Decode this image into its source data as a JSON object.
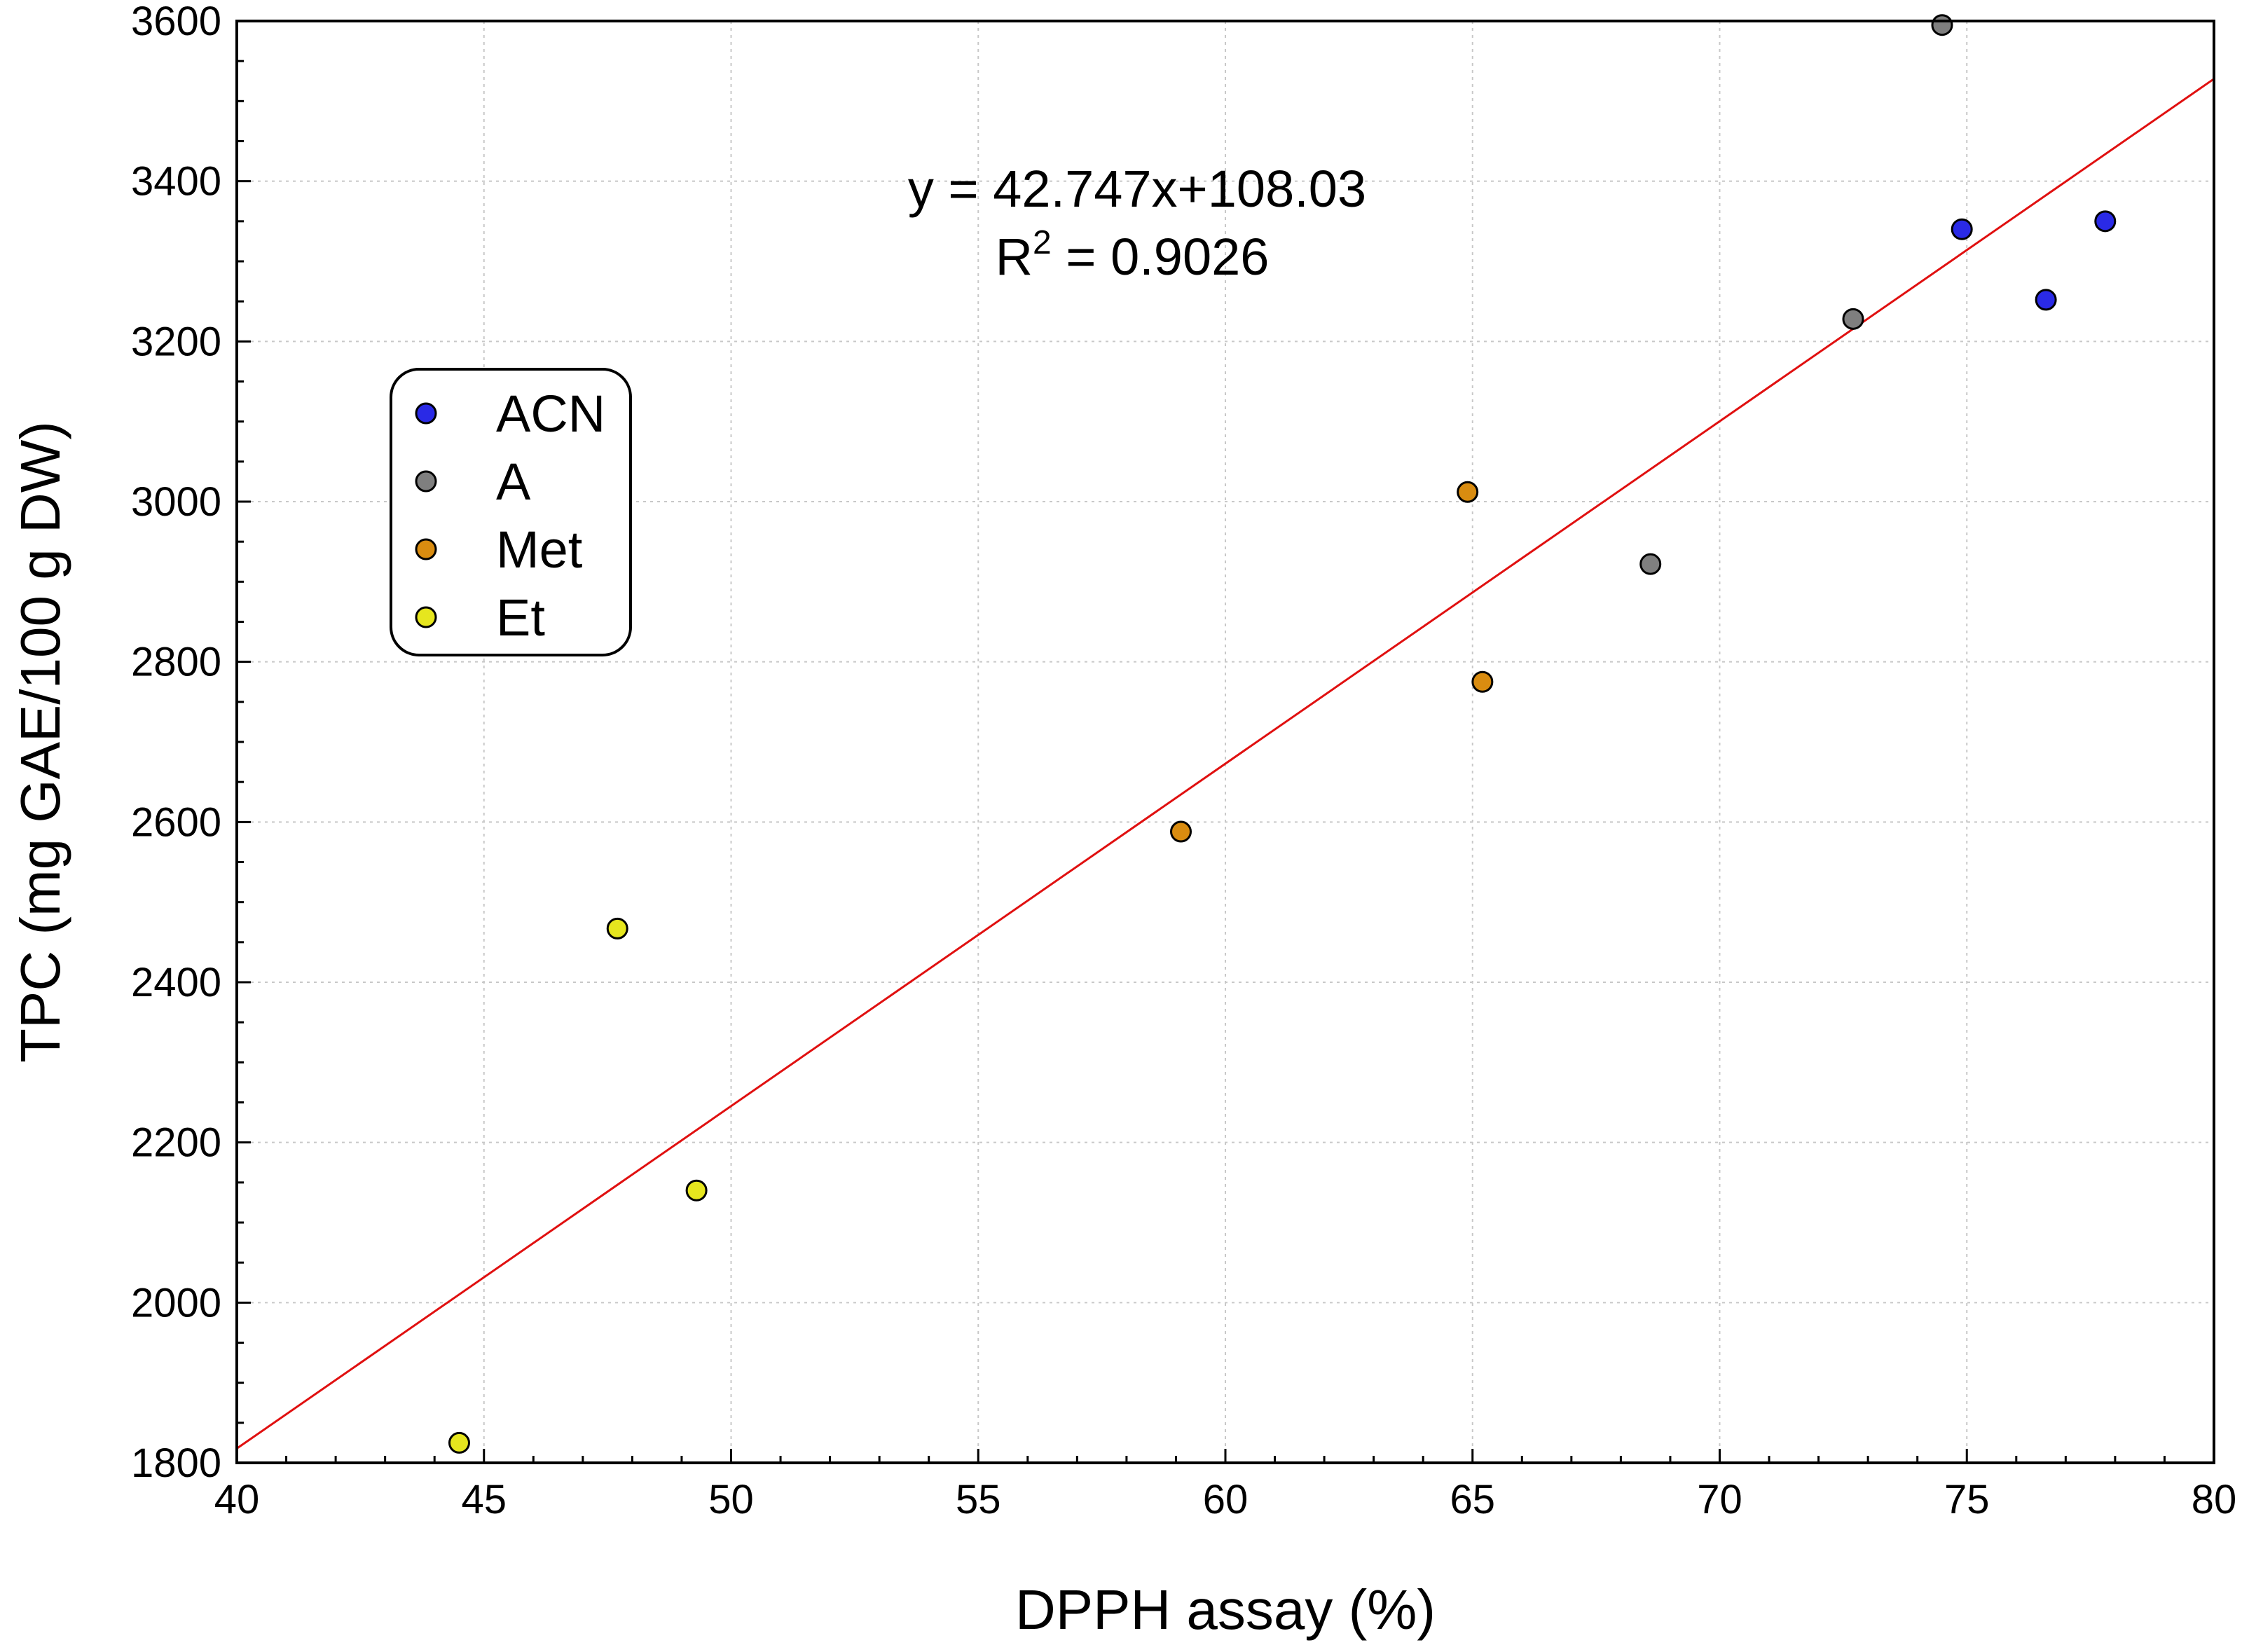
{
  "chart_data": {
    "type": "scatter",
    "title": "",
    "xlabel": "DPPH assay (%)",
    "ylabel": "TPC (mg GAE/100 g DW)",
    "xlim": [
      40,
      80
    ],
    "ylim": [
      1800,
      3600
    ],
    "x_ticks": [
      40,
      45,
      50,
      55,
      60,
      65,
      70,
      75,
      80
    ],
    "y_ticks": [
      1800,
      2000,
      2200,
      2400,
      2600,
      2800,
      3000,
      3200,
      3400,
      3600
    ],
    "grid": true,
    "legend_position": "left",
    "series": [
      {
        "name": "ACN",
        "color": "#2a2ae6",
        "x": [
          74.9,
          76.6,
          77.8
        ],
        "y": [
          3340,
          3252,
          3350
        ]
      },
      {
        "name": "A",
        "color": "#7f7f7f",
        "x": [
          74.5,
          72.7,
          68.6
        ],
        "y": [
          3595,
          3228,
          2922
        ]
      },
      {
        "name": "Met",
        "color": "#d98c10",
        "x": [
          64.9,
          65.2,
          59.1
        ],
        "y": [
          3012,
          2775,
          2588
        ]
      },
      {
        "name": "Et",
        "color": "#e6e61e",
        "x": [
          47.7,
          49.3,
          44.5
        ],
        "y": [
          2467,
          2140,
          1825
        ]
      }
    ],
    "trendline": {
      "slope": 42.747,
      "intercept": 108.03,
      "color": "#e01010"
    },
    "annotation": {
      "equation": "y = 42.747x+108.03",
      "r2_prefix": "R",
      "r2_superscript": "2",
      "r2_value": " = 0.9026"
    }
  }
}
